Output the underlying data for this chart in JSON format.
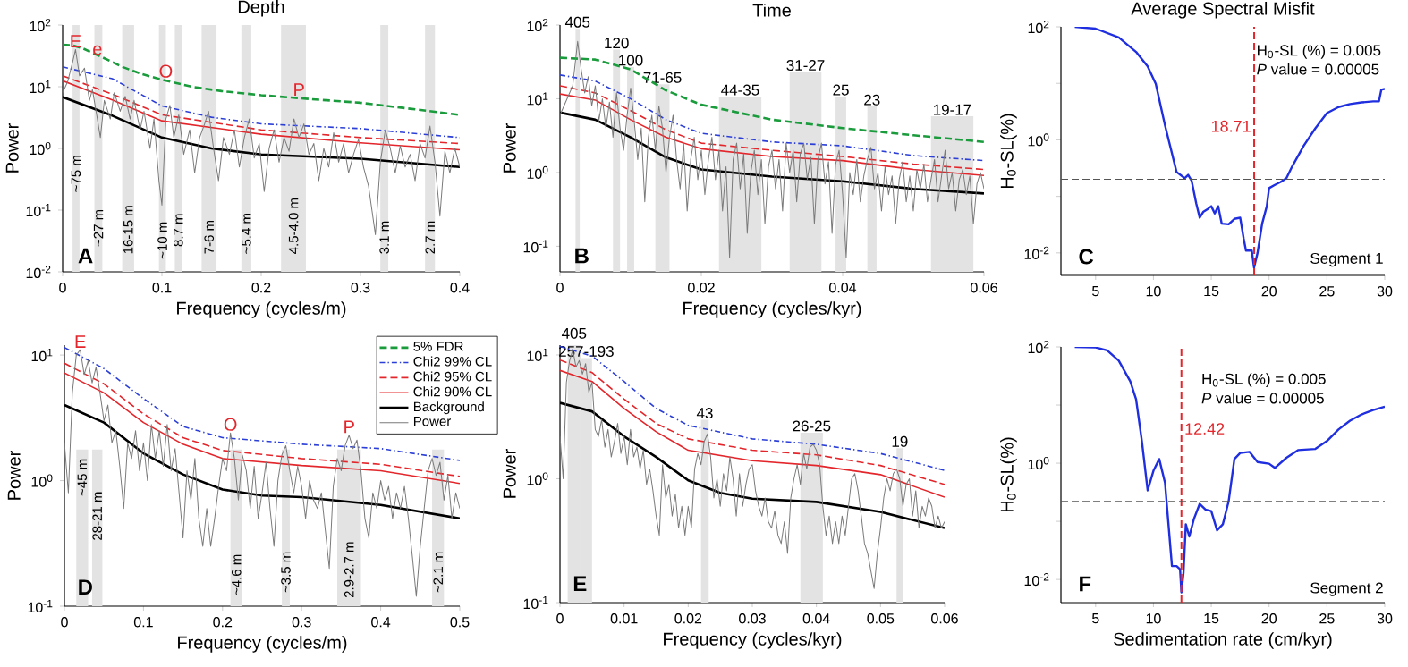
{
  "chart_data": [
    {
      "type": "line",
      "title": "Depth",
      "xlabel": "Frequency (cycles/m)",
      "ylabel": "Power",
      "log": "y",
      "legend": "bottom right",
      "xlim": [
        0,
        0.4
      ],
      "xticks": [
        0,
        0.1,
        0.2,
        0.3,
        0.4
      ],
      "ylim": [
        0.01,
        100
      ],
      "yticks": [
        {
          "value": 0.01,
          "label": "10$^{-2}$"
        },
        {
          "value": 0.1,
          "label": "10$^{-1}$"
        },
        {
          "value": 1,
          "label": "10$^{0}$"
        },
        {
          "value": 10,
          "label": "10$^{1}$"
        },
        {
          "value": 100,
          "label": "10$^{2}$"
        }
      ],
      "series": [
        {
          "name": "5% FDR",
          "color": "#1a9b3c",
          "line_style": "dashed",
          "x": [
            0,
            0.01,
            0.02,
            0.04,
            0.06,
            0.08,
            0.1,
            0.13,
            0.16,
            0.2,
            0.25,
            0.3,
            0.35,
            0.4
          ],
          "values": [
            48,
            47,
            42,
            30,
            21,
            16,
            13,
            10,
            8.5,
            7.3,
            6.3,
            5.5,
            4.4,
            3.5
          ]
        },
        {
          "name": "Chi2 99% CL",
          "color": "#2b3fd6",
          "line_style": "dashdot",
          "x": [
            0,
            0.05,
            0.1,
            0.15,
            0.2,
            0.3,
            0.4
          ],
          "values": [
            21,
            13.5,
            4.9,
            3.2,
            2.5,
            2.1,
            1.5
          ]
        },
        {
          "name": "Chi2 95% CL",
          "color": "#e3262b",
          "line_style": "dashed",
          "x": [
            0,
            0.05,
            0.1,
            0.2,
            0.3,
            0.4
          ],
          "values": [
            15,
            7.6,
            3.5,
            2.0,
            1.5,
            1.2
          ]
        },
        {
          "name": "Chi2 90% CL",
          "color": "#e3262b",
          "line_style": "solid",
          "x": [
            0,
            0.05,
            0.1,
            0.2,
            0.3,
            0.4
          ],
          "values": [
            12.5,
            6.1,
            2.8,
            1.7,
            1.23,
            0.95
          ]
        },
        {
          "name": "Background",
          "color": "#000000",
          "line_style": "solid",
          "x": [
            0,
            0.05,
            0.1,
            0.15,
            0.2,
            0.3,
            0.4
          ],
          "values": [
            6.8,
            3.4,
            1.5,
            1.0,
            0.8,
            0.68,
            0.5
          ]
        },
        {
          "name": "Power",
          "color": "#7a7a7a",
          "line_style": "solid",
          "x": [
            0,
            0.005,
            0.01,
            0.013,
            0.017,
            0.022,
            0.027,
            0.03,
            0.035,
            0.038,
            0.042,
            0.048,
            0.052,
            0.058,
            0.063,
            0.068,
            0.072,
            0.078,
            0.082,
            0.088,
            0.092,
            0.097,
            0.1,
            0.104,
            0.108,
            0.112,
            0.117,
            0.122,
            0.128,
            0.133,
            0.138,
            0.143,
            0.147,
            0.152,
            0.157,
            0.162,
            0.168,
            0.173,
            0.178,
            0.183,
            0.188,
            0.193,
            0.198,
            0.203,
            0.208,
            0.213,
            0.218,
            0.223,
            0.228,
            0.233,
            0.238,
            0.243,
            0.248,
            0.253,
            0.258,
            0.263,
            0.268,
            0.273,
            0.278,
            0.283,
            0.288,
            0.293,
            0.298,
            0.303,
            0.308,
            0.315,
            0.32,
            0.325,
            0.33,
            0.335,
            0.34,
            0.345,
            0.35,
            0.355,
            0.36,
            0.365,
            0.37,
            0.375,
            0.38,
            0.385,
            0.39,
            0.395,
            0.4
          ],
          "values": [
            8,
            12,
            25,
            40,
            15,
            20,
            6,
            9,
            3,
            1.5,
            6,
            3,
            8,
            4,
            7,
            3,
            6,
            2,
            4,
            1,
            3,
            0.3,
            0.12,
            3,
            5,
            1.5,
            3.5,
            0.8,
            2,
            0.4,
            1.5,
            2.5,
            4,
            1,
            0.3,
            1.5,
            0.8,
            2,
            0.5,
            1.5,
            3,
            0.7,
            1.2,
            0.2,
            1,
            2,
            0.6,
            1.5,
            0.9,
            3,
            1.5,
            2.5,
            0.8,
            1.2,
            0.3,
            1,
            0.5,
            1.8,
            0.6,
            1.2,
            0.4,
            0.8,
            1.4,
            0.5,
            0.25,
            0.04,
            0.6,
            2,
            1,
            0.4,
            1.1,
            0.5,
            0.8,
            0.3,
            1.2,
            0.7,
            2.3,
            0.6,
            0.08,
            0.9,
            0.4,
            1,
            0.5
          ]
        }
      ],
      "bands": [
        {
          "axis": "x",
          "from": 0.01,
          "to": 0.017,
          "label": "~75 m",
          "color": "#e3e3e3"
        },
        {
          "axis": "x",
          "from": 0.032,
          "to": 0.04,
          "label": "~27 m",
          "color": "#e3e3e3"
        },
        {
          "axis": "x",
          "from": 0.06,
          "to": 0.072,
          "label": "16-15 m",
          "color": "#e3e3e3"
        },
        {
          "axis": "x",
          "from": 0.097,
          "to": 0.104,
          "label": "~10 m",
          "color": "#e3e3e3"
        },
        {
          "axis": "x",
          "from": 0.113,
          "to": 0.12,
          "label": "8.7 m",
          "color": "#e3e3e3"
        },
        {
          "axis": "x",
          "from": 0.14,
          "to": 0.155,
          "label": "7-6 m",
          "color": "#e3e3e3"
        },
        {
          "axis": "x",
          "from": 0.18,
          "to": 0.19,
          "label": "~5.4 m",
          "color": "#e3e3e3"
        },
        {
          "axis": "x",
          "from": 0.22,
          "to": 0.245,
          "label": "4.5-4.0 m",
          "color": "#e3e3e3"
        },
        {
          "axis": "x",
          "from": 0.32,
          "to": 0.328,
          "label": "3.1 m",
          "color": "#e3e3e3"
        },
        {
          "axis": "x",
          "from": 0.365,
          "to": 0.375,
          "label": "2.7 m",
          "color": "#e3e3e3"
        }
      ],
      "annotations": [
        "A",
        {
          "text": "E",
          "x": 0.013,
          "y": 40
        },
        {
          "text": "e",
          "x": 0.035,
          "y": 30
        },
        {
          "text": "O",
          "x": 0.104,
          "y": 13
        },
        {
          "text": "P",
          "x": 0.238,
          "y": 6.6
        }
      ]
    },
    {
      "type": "line",
      "title": "Time",
      "xlabel": "Frequency (cycles/kyr)",
      "ylabel": "Power",
      "log": "y",
      "xlim": [
        0,
        0.06
      ],
      "xticks": [
        0,
        0.02,
        0.04,
        0.06
      ],
      "ylim": [
        0.045,
        100
      ],
      "yticks": [
        {
          "value": 0.1,
          "label": "10$^{-1}$"
        },
        {
          "value": 1,
          "label": "10$^{0}$"
        },
        {
          "value": 10,
          "label": "10$^{1}$"
        },
        {
          "value": 100,
          "label": "10$^{2}$"
        }
      ],
      "series": [
        {
          "color": "#1a9b3c",
          "line_style": "dashed",
          "x": [
            0,
            0.005,
            0.01,
            0.015,
            0.02,
            0.03,
            0.04,
            0.05,
            0.06
          ],
          "values": [
            36,
            34,
            25,
            13,
            8.3,
            5.2,
            4,
            3.2,
            2.6
          ]
        },
        {
          "color": "#2b3fd6",
          "line_style": "dashdot",
          "x": [
            0,
            0.005,
            0.01,
            0.015,
            0.02,
            0.03,
            0.04,
            0.05,
            0.06
          ],
          "values": [
            21,
            17.4,
            10,
            5.2,
            3.4,
            2.6,
            2.3,
            1.7,
            1.45
          ]
        },
        {
          "color": "#e3262b",
          "line_style": "dashed",
          "x": [
            0,
            0.005,
            0.01,
            0.015,
            0.02,
            0.03,
            0.04,
            0.05,
            0.06
          ],
          "values": [
            15,
            12,
            6.9,
            3.8,
            2.5,
            2.0,
            1.65,
            1.3,
            1.1
          ]
        },
        {
          "color": "#e3262b",
          "line_style": "solid",
          "x": [
            0,
            0.005,
            0.01,
            0.015,
            0.02,
            0.03,
            0.04,
            0.05,
            0.06
          ],
          "values": [
            11.6,
            9.6,
            5.2,
            3.0,
            2.1,
            1.65,
            1.45,
            1.1,
            0.91
          ]
        },
        {
          "color": "#000000",
          "line_style": "solid",
          "x": [
            0,
            0.005,
            0.01,
            0.015,
            0.02,
            0.03,
            0.04,
            0.05,
            0.06
          ],
          "values": [
            6.5,
            5.2,
            3,
            1.6,
            1.1,
            0.88,
            0.76,
            0.6,
            0.52
          ]
        },
        {
          "color": "#7a7a7a",
          "line_style": "solid",
          "x": [
            0,
            0.001,
            0.0018,
            0.0025,
            0.003,
            0.0035,
            0.004,
            0.0045,
            0.005,
            0.0055,
            0.006,
            0.0065,
            0.007,
            0.0075,
            0.008,
            0.0085,
            0.009,
            0.0095,
            0.01,
            0.0105,
            0.011,
            0.0115,
            0.012,
            0.0125,
            0.013,
            0.0135,
            0.014,
            0.0145,
            0.015,
            0.0155,
            0.016,
            0.0165,
            0.017,
            0.0175,
            0.018,
            0.0185,
            0.019,
            0.0195,
            0.02,
            0.0205,
            0.021,
            0.0215,
            0.022,
            0.0225,
            0.023,
            0.0235,
            0.024,
            0.0245,
            0.025,
            0.0255,
            0.026,
            0.0265,
            0.027,
            0.0275,
            0.028,
            0.0285,
            0.029,
            0.0295,
            0.03,
            0.0305,
            0.031,
            0.0315,
            0.032,
            0.0325,
            0.033,
            0.0335,
            0.034,
            0.0345,
            0.035,
            0.0355,
            0.036,
            0.0365,
            0.037,
            0.0375,
            0.038,
            0.0385,
            0.039,
            0.0395,
            0.04,
            0.0405,
            0.041,
            0.0415,
            0.042,
            0.0425,
            0.043,
            0.0435,
            0.044,
            0.0445,
            0.045,
            0.0455,
            0.046,
            0.0465,
            0.047,
            0.0475,
            0.048,
            0.0485,
            0.049,
            0.0495,
            0.05,
            0.0505,
            0.051,
            0.0515,
            0.052,
            0.0525,
            0.053,
            0.0535,
            0.054,
            0.0545,
            0.055,
            0.0555,
            0.056,
            0.0565,
            0.057,
            0.0575,
            0.058,
            0.0585,
            0.059,
            0.0595,
            0.06
          ],
          "values": [
            6,
            10,
            15,
            60,
            25,
            12,
            20,
            8,
            15,
            5,
            10,
            4,
            9,
            3,
            12,
            4,
            2,
            6,
            14,
            5,
            1.5,
            4,
            0.4,
            3,
            6,
            2,
            8,
            4,
            1,
            3,
            6,
            1.5,
            0.6,
            2.5,
            0.3,
            1.5,
            3,
            0.8,
            2,
            0.5,
            1.5,
            3,
            0.8,
            2,
            0.3,
            1.2,
            0.07,
            1.5,
            2.5,
            0.6,
            1.8,
            0.15,
            1,
            2,
            0.5,
            1.5,
            0.2,
            1.2,
            2,
            0.6,
            1.5,
            0.3,
            2.5,
            1,
            2,
            0.4,
            1.8,
            2.5,
            0.8,
            1.6,
            0.2,
            1.5,
            2.5,
            0.7,
            1.4,
            0.15,
            1.3,
            2,
            0.5,
            0.07,
            1,
            0.5,
            1.5,
            0.4,
            0.9,
            1.5,
            2.2,
            0.6,
            1,
            0.3,
            1.2,
            0.5,
            0.9,
            0.2,
            0.8,
            1.4,
            0.4,
            0.9,
            0.3,
            1.1,
            0.6,
            1.3,
            0.4,
            0.8,
            1.5,
            0.4,
            0.9,
            2,
            0.6,
            1,
            0.3,
            0.8,
            1.1,
            0.5,
            0.9,
            0.2,
            0.7,
            1,
            0.6
          ]
        }
      ],
      "bands": [
        {
          "axis": "x",
          "from": 0.0022,
          "to": 0.0028,
          "label": "405",
          "color": "#e3e3e3"
        },
        {
          "axis": "x",
          "from": 0.0075,
          "to": 0.0085,
          "label": "120",
          "color": "#e3e3e3"
        },
        {
          "axis": "x",
          "from": 0.0095,
          "to": 0.0105,
          "label": "100",
          "color": "#e3e3e3"
        },
        {
          "axis": "x",
          "from": 0.0135,
          "to": 0.0155,
          "label": "71-65",
          "color": "#e3e3e3"
        },
        {
          "axis": "x",
          "from": 0.0225,
          "to": 0.0285,
          "label": "44-35",
          "color": "#e3e3e3"
        },
        {
          "axis": "x",
          "from": 0.0325,
          "to": 0.037,
          "label": "31-27",
          "color": "#e3e3e3"
        },
        {
          "axis": "x",
          "from": 0.039,
          "to": 0.0405,
          "label": "25",
          "color": "#e3e3e3"
        },
        {
          "axis": "x",
          "from": 0.0435,
          "to": 0.0448,
          "label": "23",
          "color": "#e3e3e3"
        },
        {
          "axis": "x",
          "from": 0.0525,
          "to": 0.0585,
          "label": "19-17",
          "color": "#e3e3e3"
        }
      ],
      "annotations": [
        "B"
      ]
    },
    {
      "type": "line",
      "title": "Average Spectral Misfit",
      "ylabel": "H$_{0}$-SL(%)",
      "log": "y",
      "xlim": [
        2,
        30
      ],
      "xticks": [
        5,
        10,
        15,
        20,
        25,
        30
      ],
      "ylim": [
        0.004,
        100
      ],
      "yticks": [
        {
          "value": 0.01,
          "label": "10$^{-2}$"
        },
        {
          "value": 0.1,
          "label": null
        },
        {
          "value": 1,
          "label": "10$^{0}$"
        },
        {
          "value": 10,
          "label": null
        },
        {
          "value": 100,
          "label": "10$^{2}$"
        }
      ],
      "series": [
        {
          "color": "#1f2fe0",
          "line_style": "solid",
          "x": [
            3.2,
            5,
            7,
            8.5,
            9.5,
            10.2,
            11,
            11.5,
            12,
            12.7,
            13,
            13.3,
            13.7,
            14,
            14.3,
            14.7,
            15,
            15.3,
            15.6,
            15.9,
            16.5,
            17,
            17.5,
            17.8,
            18,
            18.5,
            18.7,
            19,
            19.4,
            19.8,
            20,
            20.5,
            21,
            21.5,
            22,
            23,
            24,
            25,
            26,
            27,
            28,
            29,
            29.5,
            29.7,
            30
          ],
          "values": [
            100,
            93,
            65,
            36,
            20,
            9.8,
            1.8,
            0.7,
            0.27,
            0.21,
            0.24,
            0.19,
            0.075,
            0.042,
            0.053,
            0.06,
            0.067,
            0.05,
            0.067,
            0.033,
            0.032,
            0.04,
            0.042,
            0.018,
            0.011,
            0.011,
            0.0055,
            0.01,
            0.033,
            0.067,
            0.14,
            0.16,
            0.18,
            0.21,
            0.34,
            0.79,
            1.6,
            2.97,
            3.8,
            4.3,
            4.6,
            4.8,
            4.8,
            7.7,
            8
          ]
        }
      ],
      "ref_lines": [
        {
          "axis": "x",
          "value": 18.71,
          "label": "18.71",
          "color": "#e3262b",
          "line_style": "dashed"
        },
        {
          "axis": "y",
          "value": 0.2,
          "color": "#555555",
          "line_style": "dashed"
        }
      ],
      "annotations": [
        "C",
        "H$_{0}$-SL (%) = 0.005",
        "*P* value = 0.00005",
        "Segment 1"
      ]
    },
    {
      "type": "line",
      "xlabel": "Frequency (cycles/m)",
      "ylabel": "Power",
      "log": "y",
      "xlim": [
        0,
        0.5
      ],
      "xticks": [
        0,
        0.1,
        0.2,
        0.3,
        0.4,
        0.5
      ],
      "ylim": [
        0.1,
        12
      ],
      "yticks": [
        {
          "value": 0.1,
          "label": "10$^{-1}$"
        },
        {
          "value": 1,
          "label": "10$^{0}$"
        },
        {
          "value": 10,
          "label": "10$^{1}$"
        }
      ],
      "series": [
        {
          "color": "#2b3fd6",
          "line_style": "dashdot",
          "x": [
            0,
            0.05,
            0.1,
            0.15,
            0.2,
            0.3,
            0.4,
            0.5
          ],
          "values": [
            11.5,
            7.8,
            4.5,
            2.7,
            2.2,
            1.95,
            1.8,
            1.45
          ]
        },
        {
          "color": "#e3262b",
          "line_style": "dashed",
          "x": [
            0,
            0.05,
            0.1,
            0.15,
            0.2,
            0.3,
            0.4,
            0.5
          ],
          "values": [
            8.6,
            5.9,
            3.4,
            2.2,
            1.74,
            1.5,
            1.35,
            1.08
          ]
        },
        {
          "color": "#e3262b",
          "line_style": "solid",
          "x": [
            0,
            0.05,
            0.1,
            0.15,
            0.2,
            0.3,
            0.4,
            0.5
          ],
          "values": [
            7.2,
            5.0,
            2.9,
            1.95,
            1.5,
            1.32,
            1.2,
            0.95
          ]
        },
        {
          "color": "#000000",
          "line_style": "solid",
          "x": [
            0,
            0.05,
            0.1,
            0.15,
            0.2,
            0.25,
            0.3,
            0.4,
            0.5
          ],
          "values": [
            4.0,
            2.9,
            1.65,
            1.12,
            0.85,
            0.76,
            0.74,
            0.64,
            0.5
          ]
        },
        {
          "color": "#7a7a7a",
          "line_style": "solid",
          "x": [
            0,
            0.005,
            0.01,
            0.015,
            0.02,
            0.025,
            0.03,
            0.035,
            0.04,
            0.045,
            0.05,
            0.055,
            0.06,
            0.065,
            0.07,
            0.075,
            0.08,
            0.085,
            0.09,
            0.095,
            0.1,
            0.105,
            0.11,
            0.115,
            0.12,
            0.125,
            0.13,
            0.135,
            0.14,
            0.145,
            0.15,
            0.155,
            0.16,
            0.165,
            0.17,
            0.175,
            0.18,
            0.185,
            0.19,
            0.195,
            0.2,
            0.205,
            0.21,
            0.215,
            0.22,
            0.225,
            0.23,
            0.235,
            0.24,
            0.245,
            0.25,
            0.255,
            0.26,
            0.265,
            0.27,
            0.275,
            0.28,
            0.285,
            0.29,
            0.295,
            0.3,
            0.305,
            0.31,
            0.315,
            0.32,
            0.325,
            0.33,
            0.335,
            0.34,
            0.345,
            0.35,
            0.355,
            0.36,
            0.365,
            0.37,
            0.375,
            0.38,
            0.385,
            0.39,
            0.395,
            0.4,
            0.405,
            0.41,
            0.415,
            0.42,
            0.425,
            0.43,
            0.435,
            0.44,
            0.445,
            0.45,
            0.455,
            0.46,
            0.465,
            0.47,
            0.475,
            0.48,
            0.485,
            0.49,
            0.495,
            0.5
          ],
          "values": [
            2,
            0.8,
            5,
            10,
            11,
            7,
            9,
            6,
            8,
            5,
            3,
            4,
            2,
            2.5,
            1.3,
            0.6,
            2,
            1.5,
            2.5,
            1.2,
            2,
            1,
            2.8,
            1.5,
            2.5,
            1.3,
            2.8,
            1.2,
            1.8,
            0.8,
            0.35,
            1.2,
            0.7,
            1.5,
            0.5,
            0.3,
            0.6,
            0.3,
            0.5,
            0.9,
            1.5,
            1.2,
            2.4,
            1.5,
            0.7,
            1.6,
            1.2,
            0.6,
            1.3,
            0.5,
            0.8,
            1.4,
            0.6,
            0.3,
            1,
            1.6,
            1.9,
            1.2,
            0.8,
            1.3,
            0.9,
            0.5,
            1,
            0.7,
            0.6,
            0.8,
            0.4,
            0.2,
            0.9,
            1.5,
            1.2,
            1.9,
            2.3,
            1.8,
            2.1,
            1.2,
            0.5,
            0.35,
            0.8,
            0.6,
            1,
            0.7,
            0.9,
            0.5,
            0.8,
            0.6,
            0.9,
            0.5,
            0.25,
            0.12,
            0.3,
            0.6,
            1.2,
            1.5,
            1.1,
            1.4,
            0.7,
            1.1,
            0.5,
            0.8,
            0.6
          ]
        }
      ],
      "bands": [
        {
          "axis": "x",
          "from": 0.015,
          "to": 0.03,
          "label": "~45 m",
          "color": "#e3e3e3"
        },
        {
          "axis": "x",
          "from": 0.035,
          "to": 0.048,
          "label": "28-21 m",
          "color": "#e3e3e3"
        },
        {
          "axis": "x",
          "from": 0.21,
          "to": 0.225,
          "label": "~4.6 m",
          "color": "#e3e3e3"
        },
        {
          "axis": "x",
          "from": 0.275,
          "to": 0.285,
          "label": "~3.5 m",
          "color": "#e3e3e3"
        },
        {
          "axis": "x",
          "from": 0.345,
          "to": 0.375,
          "label": "2.9-2.7 m",
          "color": "#e3e3e3"
        },
        {
          "axis": "x",
          "from": 0.465,
          "to": 0.48,
          "label": "~2.1 m",
          "color": "#e3e3e3"
        }
      ],
      "annotations": [
        "D",
        {
          "text": "E",
          "x": 0.02,
          "y": 11
        },
        {
          "text": "O",
          "x": 0.21,
          "y": 2.4
        },
        {
          "text": "P",
          "x": 0.36,
          "y": 2.3
        }
      ]
    },
    {
      "type": "line",
      "xlabel": "Frequency (cycles/kyr)",
      "ylabel": "Power",
      "log": "y",
      "xlim": [
        0,
        0.06
      ],
      "xticks": [
        0,
        0.01,
        0.02,
        0.03,
        0.04,
        0.05,
        0.06
      ],
      "ylim": [
        0.1,
        12
      ],
      "yticks": [
        {
          "value": 0.1,
          "label": "10$^{-1}$"
        },
        {
          "value": 1,
          "label": "10$^{0}$"
        },
        {
          "value": 10,
          "label": "10$^{1}$"
        }
      ],
      "series": [
        {
          "color": "#2b3fd6",
          "line_style": "dashdot",
          "x": [
            0,
            0.005,
            0.01,
            0.015,
            0.02,
            0.03,
            0.04,
            0.05,
            0.06
          ],
          "values": [
            11.7,
            9.8,
            6.1,
            3.7,
            2.7,
            2.1,
            1.9,
            1.6,
            1.17
          ]
        },
        {
          "color": "#e3262b",
          "line_style": "dashed",
          "x": [
            0,
            0.005,
            0.01,
            0.015,
            0.02,
            0.03,
            0.04,
            0.05,
            0.06
          ],
          "values": [
            9.1,
            7.2,
            4.4,
            2.8,
            2.1,
            1.7,
            1.56,
            1.28,
            0.9
          ]
        },
        {
          "color": "#e3262b",
          "line_style": "solid",
          "x": [
            0,
            0.005,
            0.01,
            0.015,
            0.02,
            0.03,
            0.04,
            0.05,
            0.06
          ],
          "values": [
            7.5,
            6.1,
            3.7,
            2.4,
            1.7,
            1.4,
            1.28,
            1.08,
            0.71
          ]
        },
        {
          "color": "#000000",
          "line_style": "solid",
          "x": [
            0,
            0.005,
            0.01,
            0.015,
            0.02,
            0.025,
            0.03,
            0.04,
            0.05,
            0.06
          ],
          "values": [
            4.1,
            3.5,
            2.2,
            1.5,
            0.97,
            0.77,
            0.69,
            0.65,
            0.54,
            0.4
          ]
        },
        {
          "color": "#7a7a7a",
          "line_style": "solid",
          "x": [
            0,
            0.0005,
            0.001,
            0.0015,
            0.002,
            0.0025,
            0.003,
            0.0035,
            0.004,
            0.0045,
            0.005,
            0.0055,
            0.006,
            0.0065,
            0.007,
            0.0075,
            0.008,
            0.0085,
            0.009,
            0.0095,
            0.01,
            0.0105,
            0.011,
            0.0115,
            0.012,
            0.0125,
            0.013,
            0.0135,
            0.014,
            0.0145,
            0.015,
            0.0155,
            0.016,
            0.0165,
            0.017,
            0.0175,
            0.018,
            0.0185,
            0.019,
            0.0195,
            0.02,
            0.0205,
            0.021,
            0.0215,
            0.022,
            0.0225,
            0.023,
            0.0235,
            0.024,
            0.0245,
            0.025,
            0.0255,
            0.026,
            0.0265,
            0.027,
            0.0275,
            0.028,
            0.0285,
            0.029,
            0.0295,
            0.03,
            0.0305,
            0.031,
            0.0315,
            0.032,
            0.0325,
            0.033,
            0.0335,
            0.034,
            0.0345,
            0.035,
            0.0355,
            0.036,
            0.0365,
            0.037,
            0.0375,
            0.038,
            0.0385,
            0.039,
            0.0395,
            0.04,
            0.0405,
            0.041,
            0.0415,
            0.042,
            0.0425,
            0.043,
            0.0435,
            0.044,
            0.0445,
            0.045,
            0.0455,
            0.046,
            0.0465,
            0.047,
            0.0475,
            0.048,
            0.0485,
            0.049,
            0.0495,
            0.05,
            0.0505,
            0.051,
            0.0515,
            0.052,
            0.0525,
            0.053,
            0.0535,
            0.054,
            0.0545,
            0.055,
            0.0555,
            0.056,
            0.0565,
            0.057,
            0.0575,
            0.058,
            0.0585,
            0.059,
            0.0595,
            0.06
          ],
          "values": [
            2.2,
            1,
            6,
            9,
            11,
            8,
            9,
            7,
            8.5,
            5,
            6,
            2.5,
            2.2,
            3,
            1.8,
            2.5,
            1.5,
            2,
            2.8,
            1.6,
            2.2,
            1.3,
            2.5,
            1.5,
            1.8,
            1.2,
            1.7,
            0.9,
            1.2,
            0.8,
            0.5,
            0.35,
            1.3,
            0.7,
            0.9,
            0.5,
            0.75,
            0.4,
            0.6,
            0.35,
            0.6,
            0.4,
            1.2,
            1.6,
            1.3,
            2,
            2.3,
            1.5,
            0.7,
            1,
            0.6,
            1.1,
            0.8,
            1.5,
            1,
            0.5,
            1.1,
            0.6,
            0.9,
            1.2,
            1.3,
            0.8,
            0.6,
            0.5,
            0.7,
            0.45,
            0.4,
            0.55,
            0.35,
            0.3,
            0.45,
            0.25,
            0.7,
            1,
            1.3,
            0.9,
            1.6,
            1.2,
            1.8,
            1.9,
            1.7,
            1.3,
            0.6,
            0.35,
            0.5,
            0.3,
            0.45,
            0.3,
            0.5,
            0.35,
            0.6,
            1,
            1.1,
            0.8,
            0.5,
            0.3,
            0.25,
            0.18,
            0.13,
            0.25,
            0.4,
            0.7,
            1,
            0.8,
            1.1,
            1.2,
            1,
            0.6,
            0.9,
            1,
            0.5,
            0.8,
            0.4,
            0.6,
            0.5,
            0.7,
            0.6,
            0.4,
            0.5,
            0.4,
            0.45
          ]
        }
      ],
      "bands": [
        {
          "axis": "x",
          "from": 0.0012,
          "to": 0.0032,
          "label": "405",
          "color": "#e3e3e3"
        },
        {
          "axis": "x",
          "from": 0.0032,
          "to": 0.005,
          "label": "257-193",
          "color": "#e3e3e3"
        },
        {
          "axis": "x",
          "from": 0.022,
          "to": 0.0232,
          "label": "43",
          "color": "#e3e3e3"
        },
        {
          "axis": "x",
          "from": 0.0375,
          "to": 0.041,
          "label": "26-25",
          "color": "#e3e3e3"
        },
        {
          "axis": "x",
          "from": 0.0525,
          "to": 0.0535,
          "label": "19",
          "color": "#e3e3e3"
        }
      ],
      "annotations": [
        "E"
      ]
    },
    {
      "type": "line",
      "xlabel": "Sedimentation rate (cm/kyr)",
      "ylabel": "H$_{0}$-SL(%)",
      "log": "y",
      "xlim": [
        2,
        30
      ],
      "xticks": [
        5,
        10,
        15,
        20,
        25,
        30
      ],
      "ylim": [
        0.004,
        100
      ],
      "yticks": [
        {
          "value": 0.01,
          "label": "10$^{-2}$"
        },
        {
          "value": 0.1,
          "label": null
        },
        {
          "value": 1,
          "label": "10$^{0}$"
        },
        {
          "value": 10,
          "label": null
        },
        {
          "value": 100,
          "label": "10$^{2}$"
        }
      ],
      "series": [
        {
          "color": "#1f2fe0",
          "line_style": "solid",
          "x": [
            3.2,
            5,
            6,
            7,
            8,
            8.5,
            9,
            9.5,
            10,
            10.5,
            11,
            11.3,
            11.6,
            12,
            12.3,
            12.42,
            12.6,
            12.8,
            13.1,
            13.5,
            14,
            14.5,
            15,
            15.5,
            16,
            16.5,
            17,
            17.5,
            18.3,
            19,
            20,
            20.5,
            21.5,
            22.5,
            24,
            25,
            26,
            27,
            28,
            29,
            30
          ],
          "values": [
            100,
            98,
            87,
            58,
            25.5,
            12.5,
            2.4,
            0.34,
            0.74,
            1.18,
            0.46,
            0.089,
            0.017,
            0.017,
            0.015,
            0.006,
            0.013,
            0.089,
            0.055,
            0.11,
            0.2,
            0.16,
            0.15,
            0.07,
            0.089,
            0.22,
            1.18,
            1.5,
            1.57,
            1.05,
            0.98,
            0.83,
            1.24,
            1.68,
            1.76,
            2.4,
            3.8,
            5.4,
            6.9,
            8.2,
            9.4
          ]
        }
      ],
      "ref_lines": [
        {
          "axis": "x",
          "value": 12.42,
          "label": "12.42",
          "color": "#e3262b",
          "line_style": "dashed"
        },
        {
          "axis": "y",
          "value": 0.22,
          "color": "#555555",
          "line_style": "dashed"
        }
      ],
      "annotations": [
        "F",
        "H$_{0}$-SL (%) = 0.005",
        "*P* value = 0.00005",
        "Segment 2"
      ]
    }
  ]
}
